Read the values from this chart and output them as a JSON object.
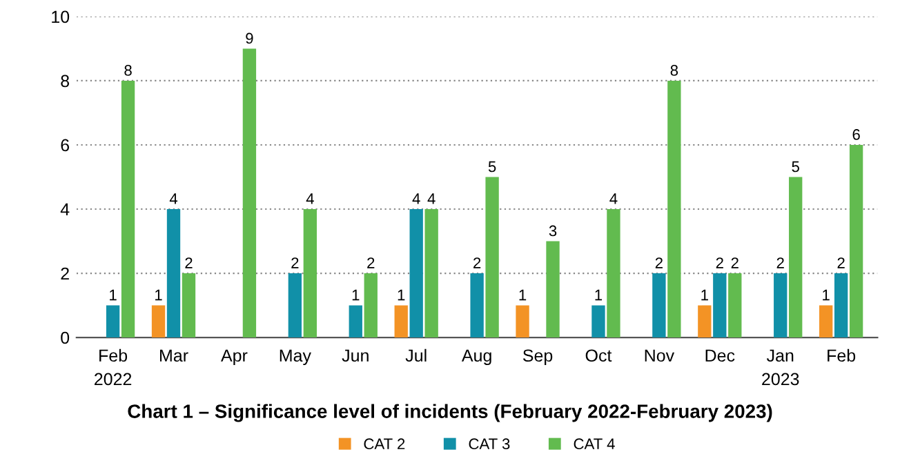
{
  "chart_data": {
    "type": "bar",
    "title": "Chart 1 – Significance level of incidents (February 2022-February 2023)",
    "categories": [
      "Feb\n2022",
      "Mar",
      "Apr",
      "May",
      "Jun",
      "Jul",
      "Aug",
      "Sep",
      "Oct",
      "Nov",
      "Dec",
      "Jan\n2023",
      "Feb"
    ],
    "series": [
      {
        "name": "CAT 2",
        "color": "#f39325",
        "values": [
          null,
          1,
          null,
          null,
          null,
          1,
          null,
          1,
          null,
          null,
          1,
          null,
          1
        ]
      },
      {
        "name": "CAT 3",
        "color": "#1190a8",
        "values": [
          1,
          4,
          null,
          2,
          1,
          4,
          2,
          null,
          1,
          2,
          2,
          2,
          2
        ]
      },
      {
        "name": "CAT 4",
        "color": "#62bb4f",
        "values": [
          8,
          2,
          9,
          4,
          2,
          4,
          5,
          3,
          4,
          8,
          2,
          5,
          6
        ]
      }
    ],
    "ylim": [
      0,
      10
    ],
    "yticks": [
      0,
      2,
      4,
      6,
      8,
      10
    ],
    "grid": "y",
    "data_labels": true,
    "legend": "bottom"
  }
}
